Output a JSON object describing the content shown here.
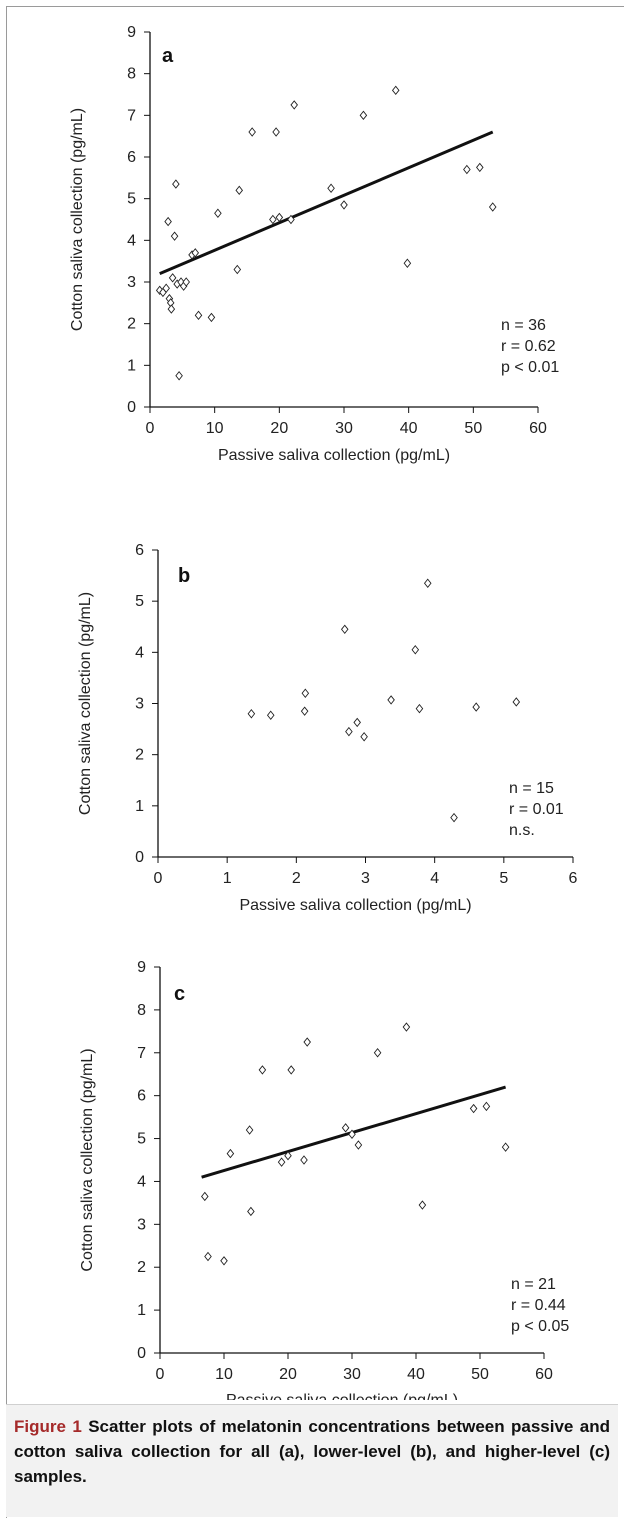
{
  "chart_data": [
    {
      "type": "scatter",
      "panel": "a",
      "xlabel": "Passive saliva collection (pg/mL)",
      "ylabel": "Cotton saliva collection (pg/mL)",
      "xlim": [
        0,
        60
      ],
      "ylim": [
        0,
        9
      ],
      "xticks": [
        "0",
        "10",
        "20",
        "30",
        "40",
        "50",
        "60"
      ],
      "yticks": [
        "0",
        "1",
        "2",
        "3",
        "4",
        "5",
        "6",
        "7",
        "8",
        "9"
      ],
      "points": [
        [
          1.5,
          2.8
        ],
        [
          2.0,
          2.75
        ],
        [
          2.5,
          2.85
        ],
        [
          2.8,
          4.45
        ],
        [
          3.0,
          2.6
        ],
        [
          3.2,
          2.5
        ],
        [
          3.3,
          2.35
        ],
        [
          3.5,
          3.1
        ],
        [
          3.8,
          4.1
        ],
        [
          4.0,
          5.35
        ],
        [
          4.2,
          2.95
        ],
        [
          4.5,
          0.75
        ],
        [
          4.8,
          3.0
        ],
        [
          5.2,
          2.9
        ],
        [
          5.6,
          3.0
        ],
        [
          6.5,
          3.65
        ],
        [
          7.0,
          3.7
        ],
        [
          7.5,
          2.2
        ],
        [
          9.5,
          2.15
        ],
        [
          10.5,
          4.65
        ],
        [
          13.5,
          3.3
        ],
        [
          13.8,
          5.2
        ],
        [
          15.8,
          6.6
        ],
        [
          19.0,
          4.5
        ],
        [
          19.5,
          6.6
        ],
        [
          21.8,
          4.5
        ],
        [
          22.3,
          7.25
        ],
        [
          28.0,
          5.25
        ],
        [
          30.0,
          4.85
        ],
        [
          33.0,
          7.0
        ],
        [
          38.0,
          7.6
        ],
        [
          39.8,
          3.45
        ],
        [
          49.0,
          5.7
        ],
        [
          51.0,
          5.75
        ],
        [
          53.0,
          4.8
        ],
        [
          20.0,
          4.55
        ]
      ],
      "trendline": {
        "x": [
          1.5,
          53.0
        ],
        "y": [
          3.2,
          6.6
        ]
      },
      "stats": [
        "n = 36",
        "r = 0.62",
        "p < 0.01"
      ]
    },
    {
      "type": "scatter",
      "panel": "b",
      "xlabel": "Passive saliva collection (pg/mL)",
      "ylabel": "Cotton saliva collection (pg/mL)",
      "xlim": [
        0,
        6
      ],
      "ylim": [
        0,
        6
      ],
      "xticks": [
        "0",
        "1",
        "2",
        "3",
        "4",
        "5",
        "6"
      ],
      "yticks": [
        "0",
        "1",
        "2",
        "3",
        "4",
        "5",
        "6"
      ],
      "points": [
        [
          1.35,
          2.8
        ],
        [
          1.63,
          2.77
        ],
        [
          2.12,
          2.85
        ],
        [
          2.13,
          3.2
        ],
        [
          2.7,
          4.45
        ],
        [
          2.76,
          2.45
        ],
        [
          2.88,
          2.63
        ],
        [
          2.98,
          2.35
        ],
        [
          3.37,
          3.07
        ],
        [
          3.72,
          4.05
        ],
        [
          3.78,
          2.9
        ],
        [
          3.9,
          5.35
        ],
        [
          4.28,
          0.77
        ],
        [
          4.6,
          2.93
        ],
        [
          5.18,
          3.03
        ]
      ],
      "stats": [
        "n = 15",
        "r = 0.01",
        "n.s."
      ]
    },
    {
      "type": "scatter",
      "panel": "c",
      "xlabel": "Passive saliva collection (pg/mL)",
      "ylabel": "Cotton saliva collection (pg/mL)",
      "xlim": [
        0,
        60
      ],
      "ylim": [
        0,
        9
      ],
      "xticks": [
        "0",
        "10",
        "20",
        "30",
        "40",
        "50",
        "60"
      ],
      "yticks": [
        "0",
        "1",
        "2",
        "3",
        "4",
        "5",
        "6",
        "7",
        "8",
        "9"
      ],
      "points": [
        [
          7.0,
          3.65
        ],
        [
          7.5,
          2.25
        ],
        [
          10.0,
          2.15
        ],
        [
          11.0,
          4.65
        ],
        [
          14.0,
          5.2
        ],
        [
          14.2,
          3.3
        ],
        [
          16.0,
          6.6
        ],
        [
          19.0,
          4.45
        ],
        [
          20.0,
          4.6
        ],
        [
          20.5,
          6.6
        ],
        [
          22.5,
          4.5
        ],
        [
          23.0,
          7.25
        ],
        [
          29.0,
          5.25
        ],
        [
          31.0,
          4.85
        ],
        [
          34.0,
          7.0
        ],
        [
          38.5,
          7.6
        ],
        [
          41.0,
          3.45
        ],
        [
          49.0,
          5.7
        ],
        [
          51.0,
          5.75
        ],
        [
          54.0,
          4.8
        ],
        [
          30.0,
          5.1
        ]
      ],
      "trendline": {
        "x": [
          6.5,
          54.0
        ],
        "y": [
          4.1,
          6.2
        ]
      },
      "stats": [
        "n = 21",
        "r = 0.44",
        "p < 0.05"
      ]
    }
  ],
  "caption": {
    "lead": "Figure 1",
    "text": " Scatter plots of melatonin concentrations between passive and cotton saliva collection for all (a), lower-level (b), and higher-level (c) samples."
  }
}
